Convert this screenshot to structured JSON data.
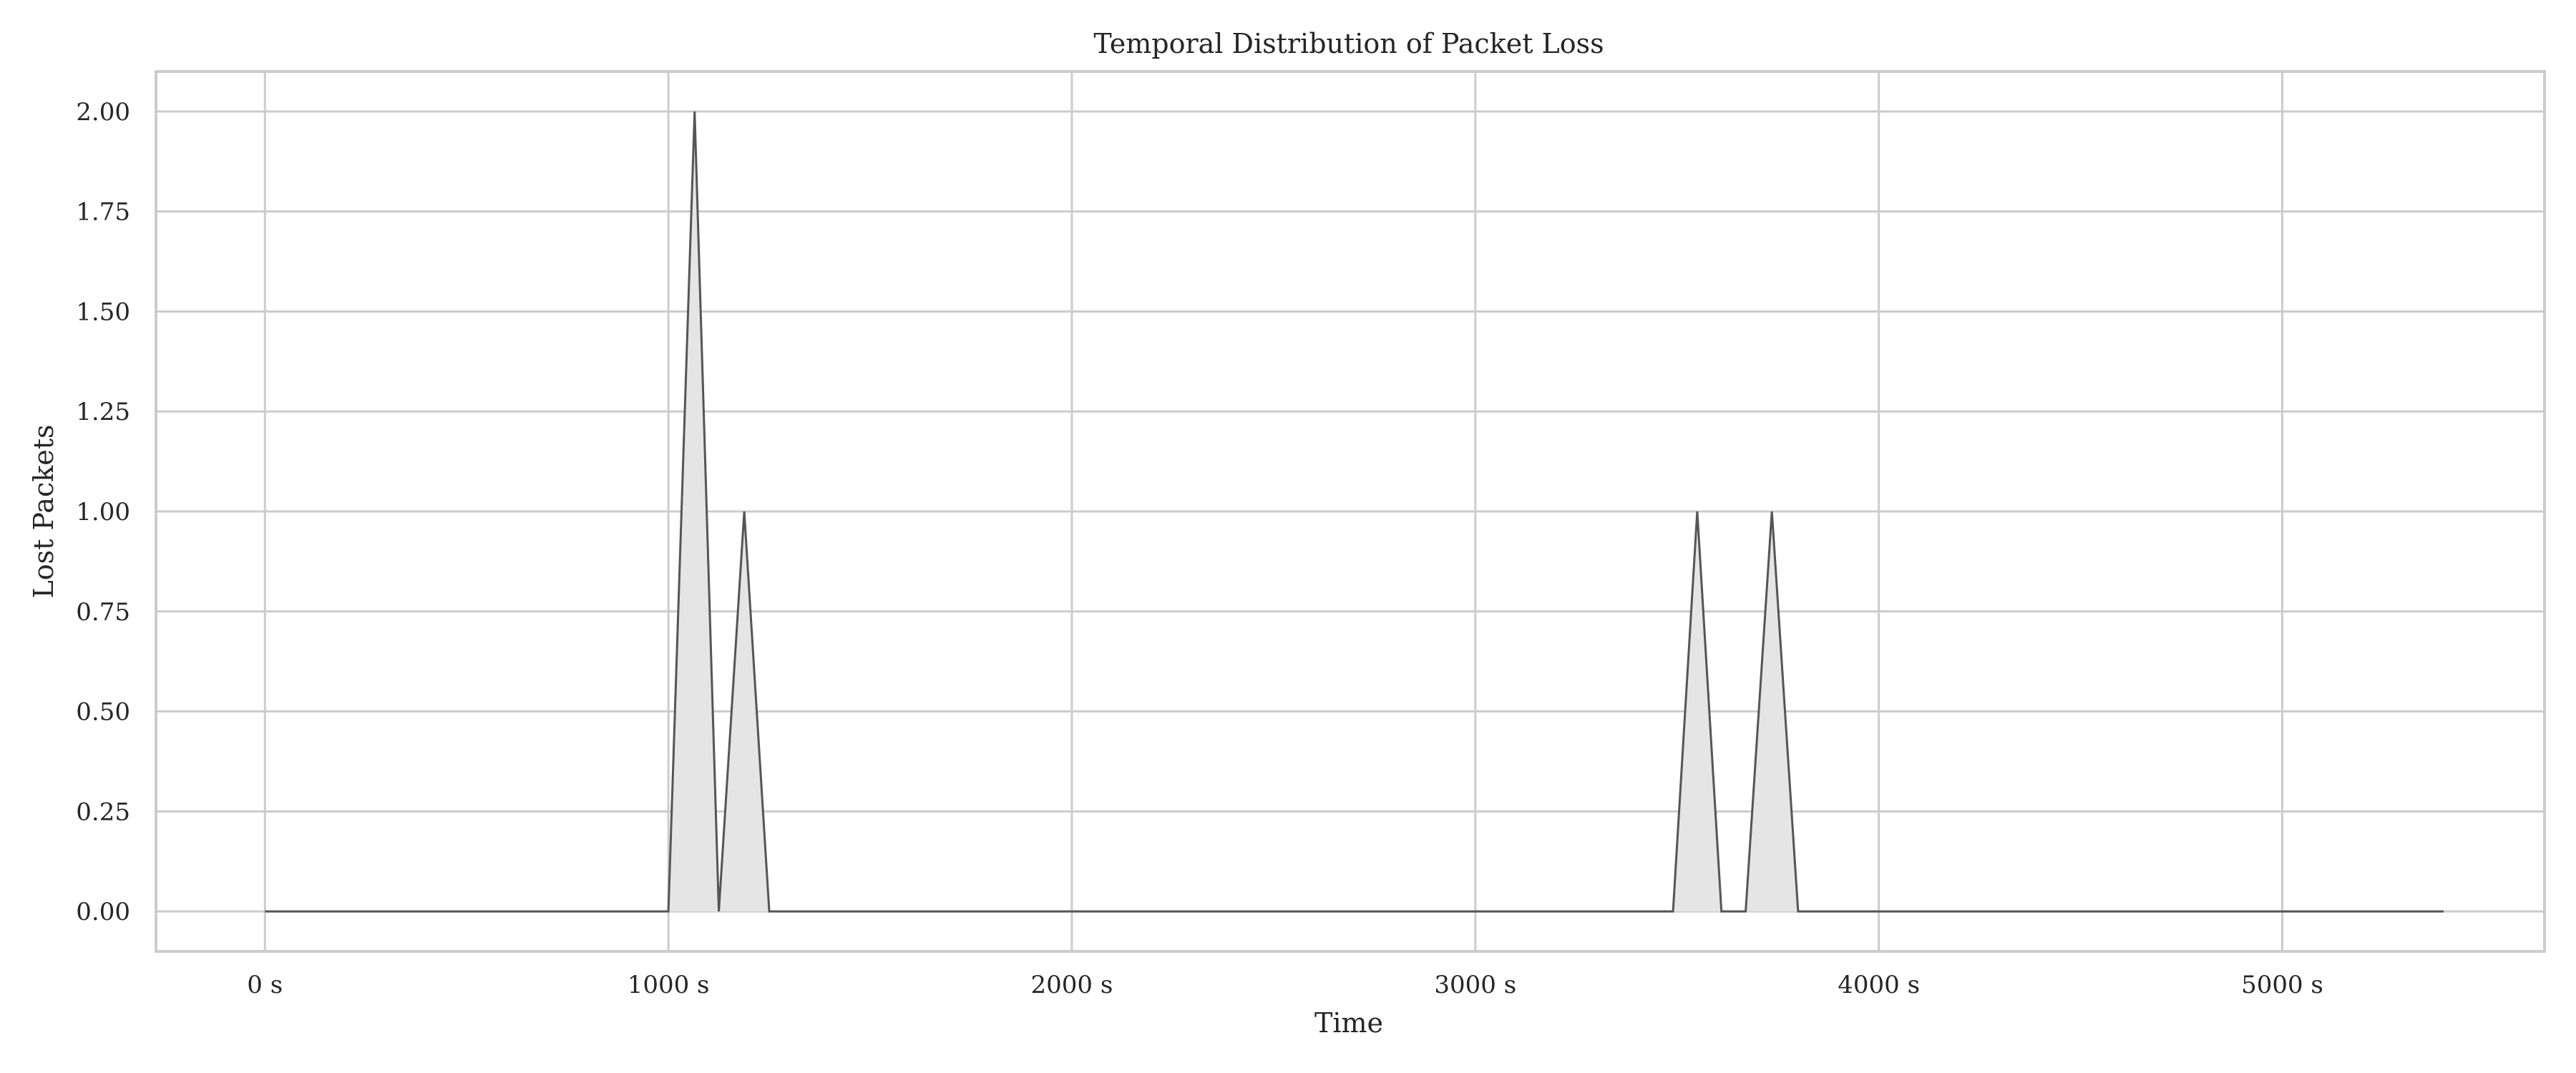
{
  "chart_data": {
    "type": "area",
    "title": "Temporal Distribution of Packet Loss",
    "xlabel": "Time",
    "ylabel": "Lost Packets",
    "xlim": [
      -270,
      5650
    ],
    "ylim": [
      -0.1,
      2.1
    ],
    "x_ticks": [
      0,
      1000,
      2000,
      3000,
      4000,
      5000
    ],
    "x_tick_labels": [
      "0 s",
      "1000 s",
      "2000 s",
      "3000 s",
      "4000 s",
      "5000 s"
    ],
    "y_ticks": [
      0,
      0.25,
      0.5,
      0.75,
      1.0,
      1.25,
      1.5,
      1.75,
      2.0
    ],
    "y_tick_labels": [
      "0.00",
      "0.25",
      "0.50",
      "0.75",
      "1.00",
      "1.25",
      "1.50",
      "1.75",
      "2.00"
    ],
    "grid": true,
    "legend": "none",
    "colors": {
      "line": "#555555",
      "fill": "#e5e5e5",
      "grid": "#cccccc",
      "text": "#262626"
    },
    "series": [
      {
        "x": [
          0,
          1000,
          1065,
          1125,
          1188,
          1250,
          3490,
          3550,
          3610,
          3670,
          3735,
          3800,
          5400
        ],
        "values": [
          0,
          0,
          2,
          0,
          1,
          0,
          0,
          1,
          0,
          0,
          1,
          0,
          0
        ]
      }
    ]
  }
}
